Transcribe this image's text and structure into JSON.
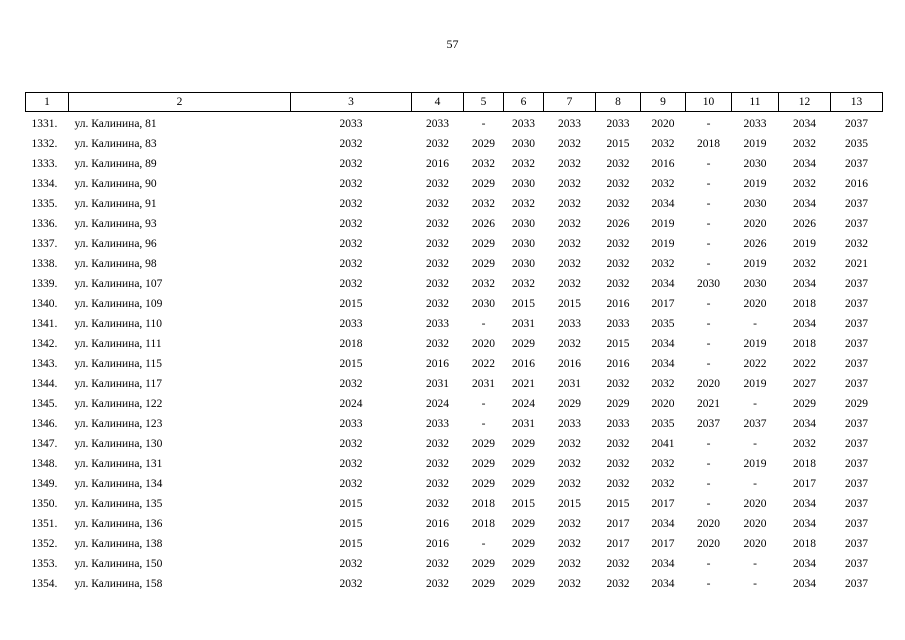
{
  "page_number": "57",
  "table": {
    "header": [
      "1",
      "2",
      "3",
      "4",
      "5",
      "6",
      "7",
      "8",
      "9",
      "10",
      "11",
      "12",
      "13"
    ],
    "rows": [
      [
        "1331.",
        "ул. Калинина, 81",
        "2033",
        "2033",
        "-",
        "2033",
        "2033",
        "2033",
        "2020",
        "-",
        "2033",
        "2034",
        "2037"
      ],
      [
        "1332.",
        "ул. Калинина, 83",
        "2032",
        "2032",
        "2029",
        "2030",
        "2032",
        "2015",
        "2032",
        "2018",
        "2019",
        "2032",
        "2035"
      ],
      [
        "1333.",
        "ул. Калинина, 89",
        "2032",
        "2016",
        "2032",
        "2032",
        "2032",
        "2032",
        "2016",
        "-",
        "2030",
        "2034",
        "2037"
      ],
      [
        "1334.",
        "ул. Калинина, 90",
        "2032",
        "2032",
        "2029",
        "2030",
        "2032",
        "2032",
        "2032",
        "-",
        "2019",
        "2032",
        "2016"
      ],
      [
        "1335.",
        "ул. Калинина, 91",
        "2032",
        "2032",
        "2032",
        "2032",
        "2032",
        "2032",
        "2034",
        "-",
        "2030",
        "2034",
        "2037"
      ],
      [
        "1336.",
        "ул. Калинина, 93",
        "2032",
        "2032",
        "2026",
        "2030",
        "2032",
        "2026",
        "2019",
        "-",
        "2020",
        "2026",
        "2037"
      ],
      [
        "1337.",
        "ул. Калинина, 96",
        "2032",
        "2032",
        "2029",
        "2030",
        "2032",
        "2032",
        "2019",
        "-",
        "2026",
        "2019",
        "2032"
      ],
      [
        "1338.",
        "ул. Калинина, 98",
        "2032",
        "2032",
        "2029",
        "2030",
        "2032",
        "2032",
        "2032",
        "-",
        "2019",
        "2032",
        "2021"
      ],
      [
        "1339.",
        "ул. Калинина, 107",
        "2032",
        "2032",
        "2032",
        "2032",
        "2032",
        "2032",
        "2034",
        "2030",
        "2030",
        "2034",
        "2037"
      ],
      [
        "1340.",
        "ул. Калинина, 109",
        "2015",
        "2032",
        "2030",
        "2015",
        "2015",
        "2016",
        "2017",
        "-",
        "2020",
        "2018",
        "2037"
      ],
      [
        "1341.",
        "ул. Калинина, 110",
        "2033",
        "2033",
        "-",
        "2031",
        "2033",
        "2033",
        "2035",
        "-",
        "-",
        "2034",
        "2037"
      ],
      [
        "1342.",
        "ул. Калинина, 111",
        "2018",
        "2032",
        "2020",
        "2029",
        "2032",
        "2015",
        "2034",
        "-",
        "2019",
        "2018",
        "2037"
      ],
      [
        "1343.",
        "ул. Калинина, 115",
        "2015",
        "2016",
        "2022",
        "2016",
        "2016",
        "2016",
        "2034",
        "-",
        "2022",
        "2022",
        "2037"
      ],
      [
        "1344.",
        "ул. Калинина, 117",
        "2032",
        "2031",
        "2031",
        "2021",
        "2031",
        "2032",
        "2032",
        "2020",
        "2019",
        "2027",
        "2037"
      ],
      [
        "1345.",
        "ул. Калинина, 122",
        "2024",
        "2024",
        "-",
        "2024",
        "2029",
        "2029",
        "2020",
        "2021",
        "-",
        "2029",
        "2029"
      ],
      [
        "1346.",
        "ул. Калинина, 123",
        "2033",
        "2033",
        "-",
        "2031",
        "2033",
        "2033",
        "2035",
        "2037",
        "2037",
        "2034",
        "2037"
      ],
      [
        "1347.",
        "ул. Калинина, 130",
        "2032",
        "2032",
        "2029",
        "2029",
        "2032",
        "2032",
        "2041",
        "-",
        "-",
        "2032",
        "2037"
      ],
      [
        "1348.",
        "ул. Калинина, 131",
        "2032",
        "2032",
        "2029",
        "2029",
        "2032",
        "2032",
        "2032",
        "-",
        "2019",
        "2018",
        "2037"
      ],
      [
        "1349.",
        "ул. Калинина, 134",
        "2032",
        "2032",
        "2029",
        "2029",
        "2032",
        "2032",
        "2032",
        "-",
        "-",
        "2017",
        "2037"
      ],
      [
        "1350.",
        "ул. Калинина, 135",
        "2015",
        "2032",
        "2018",
        "2015",
        "2015",
        "2015",
        "2017",
        "-",
        "2020",
        "2034",
        "2037"
      ],
      [
        "1351.",
        "ул. Калинина, 136",
        "2015",
        "2016",
        "2018",
        "2029",
        "2032",
        "2017",
        "2034",
        "2020",
        "2020",
        "2034",
        "2037"
      ],
      [
        "1352.",
        "ул. Калинина, 138",
        "2015",
        "2016",
        "-",
        "2029",
        "2032",
        "2017",
        "2017",
        "2020",
        "2020",
        "2018",
        "2037"
      ],
      [
        "1353.",
        "ул. Калинина, 150",
        "2032",
        "2032",
        "2029",
        "2029",
        "2032",
        "2032",
        "2034",
        "-",
        "-",
        "2034",
        "2037"
      ],
      [
        "1354.",
        "ул. Калинина, 158",
        "2032",
        "2032",
        "2029",
        "2029",
        "2032",
        "2032",
        "2034",
        "-",
        "-",
        "2034",
        "2037"
      ]
    ]
  }
}
